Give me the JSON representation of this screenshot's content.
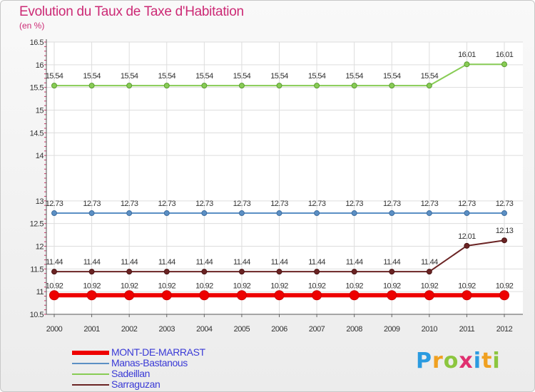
{
  "title": "Evolution du Taux de Taxe d'Habitation",
  "subtitle": "(en %)",
  "logo": {
    "letters": [
      "P",
      "r",
      "o",
      "x",
      "i",
      "t",
      "i"
    ],
    "colors": [
      "#2b9be0",
      "#f0a020",
      "#8cc63f",
      "#e03070",
      "#2b9be0",
      "#f0a020",
      "#8cc63f"
    ]
  },
  "chart_data": {
    "type": "line",
    "title": "Evolution du Taux de Taxe d'Habitation",
    "ylabel": "(en %)",
    "x": [
      "2000",
      "2001",
      "2002",
      "2003",
      "2004",
      "2005",
      "2006",
      "2007",
      "2008",
      "2009",
      "2010",
      "2011",
      "2012"
    ],
    "ylim": [
      10.5,
      16.5
    ],
    "yticks": [
      "10.5",
      "11",
      "11.5",
      "12",
      "12.5",
      "13",
      "14",
      "14.5",
      "15",
      "15.5",
      "16",
      "16.5"
    ],
    "ytick_values": [
      10.5,
      11,
      11.5,
      12,
      12.5,
      13,
      14,
      14.5,
      15,
      15.5,
      16,
      16.5
    ],
    "series": [
      {
        "name": "MONT-DE-MARRAST",
        "color": "#ee0000",
        "values": [
          10.92,
          10.92,
          10.92,
          10.92,
          10.92,
          10.92,
          10.92,
          10.92,
          10.92,
          10.92,
          10.92,
          10.92,
          10.92
        ],
        "labels": [
          "10.92",
          "10.92",
          "10.92",
          "10.92",
          "10.92",
          "10.92",
          "10.92",
          "10.92",
          "10.92",
          "10.92",
          "10.92",
          "10.92",
          "10.92"
        ]
      },
      {
        "name": "Manas-Bastanous",
        "color": "#5b8fc4",
        "values": [
          12.73,
          12.73,
          12.73,
          12.73,
          12.73,
          12.73,
          12.73,
          12.73,
          12.73,
          12.73,
          12.73,
          12.73,
          12.73
        ],
        "labels": [
          "12.73",
          "12.73",
          "12.73",
          "12.73",
          "12.73",
          "12.73",
          "12.73",
          "12.73",
          "12.73",
          "12.73",
          "12.73",
          "12.73",
          "12.73"
        ]
      },
      {
        "name": "Sadeillan",
        "color": "#88cc55",
        "values": [
          15.54,
          15.54,
          15.54,
          15.54,
          15.54,
          15.54,
          15.54,
          15.54,
          15.54,
          15.54,
          15.54,
          16.01,
          16.01
        ],
        "labels": [
          "15.54",
          "15.54",
          "15.54",
          "15.54",
          "15.54",
          "15.54",
          "15.54",
          "15.54",
          "15.54",
          "15.54",
          "15.54",
          "16.01",
          "16.01"
        ]
      },
      {
        "name": "Sarraguzan",
        "color": "#6b2424",
        "values": [
          11.44,
          11.44,
          11.44,
          11.44,
          11.44,
          11.44,
          11.44,
          11.44,
          11.44,
          11.44,
          11.44,
          12.01,
          12.13
        ],
        "labels": [
          "11.44",
          "11.44",
          "11.44",
          "11.44",
          "11.44",
          "11.44",
          "11.44",
          "11.44",
          "11.44",
          "11.44",
          "11.44",
          "12.01",
          "12.13"
        ]
      }
    ]
  }
}
